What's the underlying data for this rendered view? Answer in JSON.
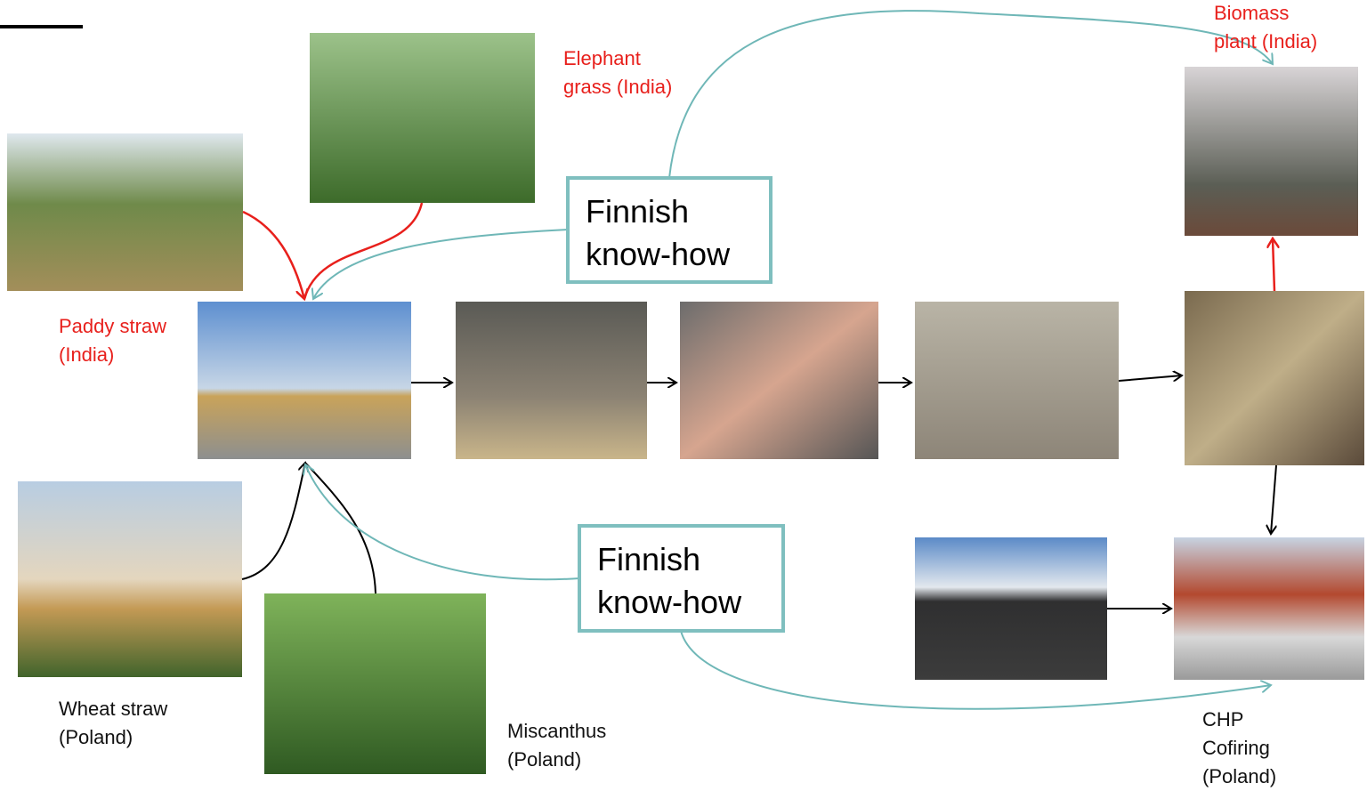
{
  "nodes": [
    {
      "label": [
        "Elephant",
        "grass (India)"
      ]
    },
    {
      "label": [
        "Biomass",
        "plant (India)"
      ]
    },
    {
      "label": [
        "Paddy straw",
        "(India)"
      ]
    },
    {
      "label": [
        "Wheat straw",
        "(Poland)"
      ]
    },
    {
      "label": [
        "Miscanthus",
        "(Poland)"
      ]
    },
    {
      "label": [
        "CHP",
        "Cofiring",
        "(Poland)"
      ]
    }
  ],
  "boxes": [
    {
      "lines": [
        "Finnish",
        "know-how"
      ]
    },
    {
      "lines": [
        "Finnish",
        "know-how"
      ]
    }
  ]
}
